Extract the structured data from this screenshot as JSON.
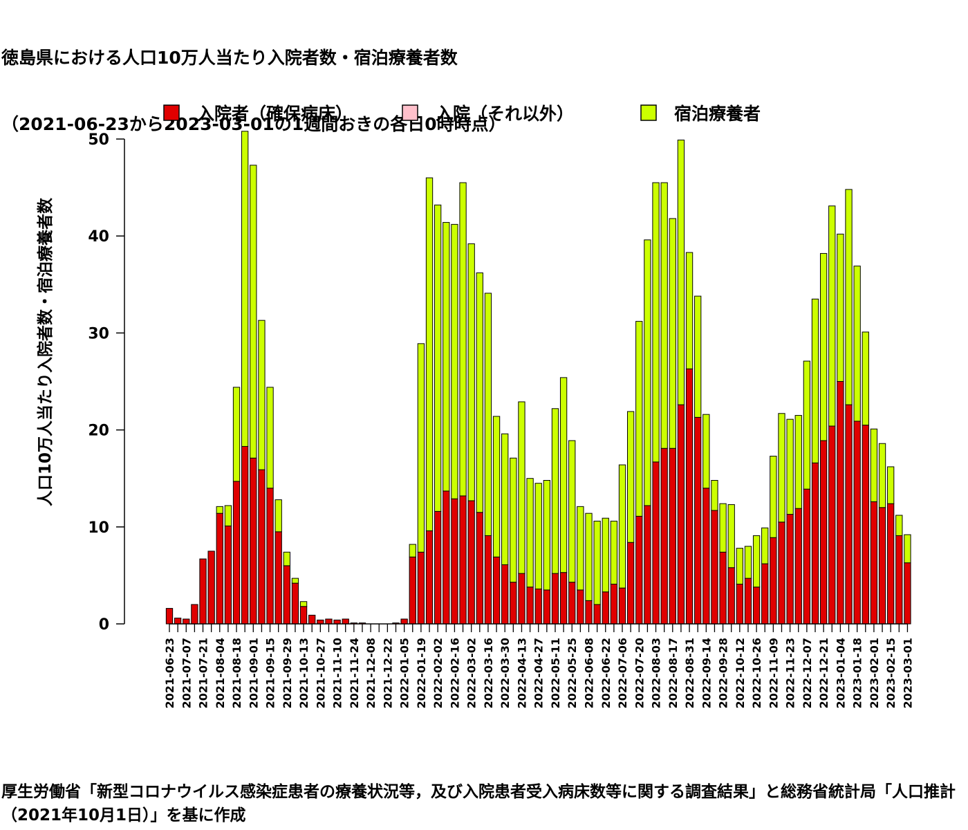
{
  "title_lines": [
    "徳島県における人口10万人当たり入院者数・宿泊療養者数",
    "（2021-06-23から2023-03-01の1週間おきの各日0時時点）"
  ],
  "source_note": "厚生労働省「新型コロナウイルス感染症患者の療養状況等，及び入院患者受入病床数等に関する調査結果」と総務省統計局「人口推計（2021年10月1日）」を基に作成",
  "colors": {
    "secured_bed": "#e00000",
    "other_hospital": "#ffc0cb",
    "hotel": "#ccff00",
    "edge": "#000000"
  },
  "chart_data": {
    "type": "bar",
    "stacked": true,
    "title": "徳島県における人口10万人当たり入院者数・宿泊療養者数（2021-06-23から2023-03-01の1週間おきの各日0時時点）",
    "ylabel": "人口10万人当たり入院者数・宿泊療養者数",
    "xlabel": "",
    "ylim": [
      0,
      50
    ],
    "yticks": [
      0,
      10,
      20,
      30,
      40,
      50
    ],
    "grid": false,
    "legend_position": "top",
    "categories": [
      "2021-06-23",
      "2021-06-30",
      "2021-07-07",
      "2021-07-14",
      "2021-07-21",
      "2021-07-28",
      "2021-08-04",
      "2021-08-11",
      "2021-08-18",
      "2021-08-25",
      "2021-09-01",
      "2021-09-08",
      "2021-09-15",
      "2021-09-22",
      "2021-09-29",
      "2021-10-06",
      "2021-10-13",
      "2021-10-20",
      "2021-10-27",
      "2021-11-03",
      "2021-11-10",
      "2021-11-17",
      "2021-11-24",
      "2021-12-01",
      "2021-12-08",
      "2021-12-15",
      "2021-12-22",
      "2021-12-29",
      "2022-01-05",
      "2022-01-12",
      "2022-01-19",
      "2022-01-26",
      "2022-02-02",
      "2022-02-09",
      "2022-02-16",
      "2022-02-23",
      "2022-03-02",
      "2022-03-09",
      "2022-03-16",
      "2022-03-23",
      "2022-03-30",
      "2022-04-06",
      "2022-04-13",
      "2022-04-20",
      "2022-04-27",
      "2022-05-04",
      "2022-05-11",
      "2022-05-18",
      "2022-05-25",
      "2022-06-01",
      "2022-06-08",
      "2022-06-15",
      "2022-06-22",
      "2022-06-29",
      "2022-07-06",
      "2022-07-13",
      "2022-07-20",
      "2022-07-27",
      "2022-08-03",
      "2022-08-10",
      "2022-08-17",
      "2022-08-24",
      "2022-08-31",
      "2022-09-07",
      "2022-09-14",
      "2022-09-21",
      "2022-09-28",
      "2022-10-05",
      "2022-10-12",
      "2022-10-19",
      "2022-10-26",
      "2022-11-02",
      "2022-11-09",
      "2022-11-16",
      "2022-11-23",
      "2022-11-30",
      "2022-12-07",
      "2022-12-14",
      "2022-12-21",
      "2022-12-28",
      "2023-01-04",
      "2023-01-11",
      "2023-01-18",
      "2023-01-25",
      "2023-02-01",
      "2023-02-08",
      "2023-02-15",
      "2023-02-22",
      "2023-03-01"
    ],
    "series": [
      {
        "name": "入院者（確保病床）",
        "values": [
          1.6,
          0.6,
          0.5,
          2.0,
          6.7,
          7.5,
          11.4,
          10.1,
          14.7,
          18.3,
          17.1,
          15.9,
          14.0,
          9.5,
          6.0,
          4.2,
          1.8,
          0.9,
          0.4,
          0.5,
          0.4,
          0.5,
          0.1,
          0.1,
          0.0,
          0.0,
          0.0,
          0.1,
          0.5,
          6.9,
          7.4,
          9.6,
          11.6,
          13.7,
          12.9,
          13.2,
          12.7,
          11.5,
          9.1,
          6.9,
          6.1,
          4.3,
          5.2,
          3.8,
          3.6,
          3.5,
          5.2,
          5.3,
          4.3,
          3.5,
          2.4,
          2.0,
          3.3,
          4.1,
          3.7,
          8.4,
          11.1,
          12.2,
          16.7,
          18.1,
          18.1,
          22.6,
          26.3,
          21.3,
          14.0,
          11.7,
          7.4,
          5.8,
          4.1,
          4.7,
          3.8,
          6.2,
          8.9,
          10.5,
          11.3,
          11.9,
          13.9,
          16.6,
          18.9,
          20.4,
          25.0,
          22.6,
          20.9,
          20.5,
          12.6,
          12.0,
          12.4,
          9.1,
          6.3
        ]
      },
      {
        "name": "入院（それ以外）",
        "values": [
          0,
          0,
          0,
          0,
          0,
          0,
          0,
          0,
          0,
          0,
          0,
          0,
          0,
          0,
          0,
          0,
          0,
          0,
          0,
          0,
          0,
          0,
          0,
          0,
          0,
          0,
          0,
          0,
          0,
          0,
          0,
          0,
          0,
          0,
          0,
          0,
          0,
          0,
          0,
          0,
          0,
          0,
          0,
          0,
          0,
          0,
          0,
          0,
          0,
          0,
          0,
          0,
          0,
          0,
          0,
          0,
          0,
          0,
          0,
          0,
          0,
          0,
          0,
          0,
          0,
          0,
          0,
          0,
          0,
          0,
          0,
          0,
          0,
          0,
          0,
          0,
          0,
          0,
          0,
          0,
          0,
          0,
          0,
          0,
          0,
          0,
          0,
          0,
          0
        ]
      },
      {
        "name": "宿泊療養者",
        "values": [
          0.0,
          0.0,
          0.0,
          0.0,
          0.0,
          0.0,
          0.7,
          2.1,
          9.7,
          32.5,
          30.2,
          15.4,
          10.4,
          3.3,
          1.4,
          0.5,
          0.5,
          0.0,
          0.0,
          0.0,
          0.0,
          0.0,
          0.0,
          0.0,
          0.0,
          0.0,
          0.0,
          0.0,
          0.0,
          1.3,
          21.5,
          36.4,
          31.6,
          27.7,
          28.3,
          32.3,
          26.5,
          24.7,
          25.0,
          14.5,
          13.5,
          12.8,
          17.7,
          11.2,
          10.9,
          11.3,
          17.0,
          20.1,
          14.6,
          8.6,
          9.0,
          8.6,
          7.6,
          6.5,
          12.7,
          13.5,
          20.1,
          27.4,
          28.8,
          27.4,
          23.7,
          27.3,
          12.0,
          12.5,
          7.6,
          3.1,
          5.0,
          6.5,
          3.7,
          3.3,
          5.3,
          3.7,
          8.4,
          11.2,
          9.8,
          9.6,
          13.2,
          16.9,
          19.3,
          22.7,
          15.2,
          22.2,
          16.0,
          9.6,
          7.5,
          6.6,
          3.8,
          2.1,
          2.9
        ]
      }
    ]
  }
}
